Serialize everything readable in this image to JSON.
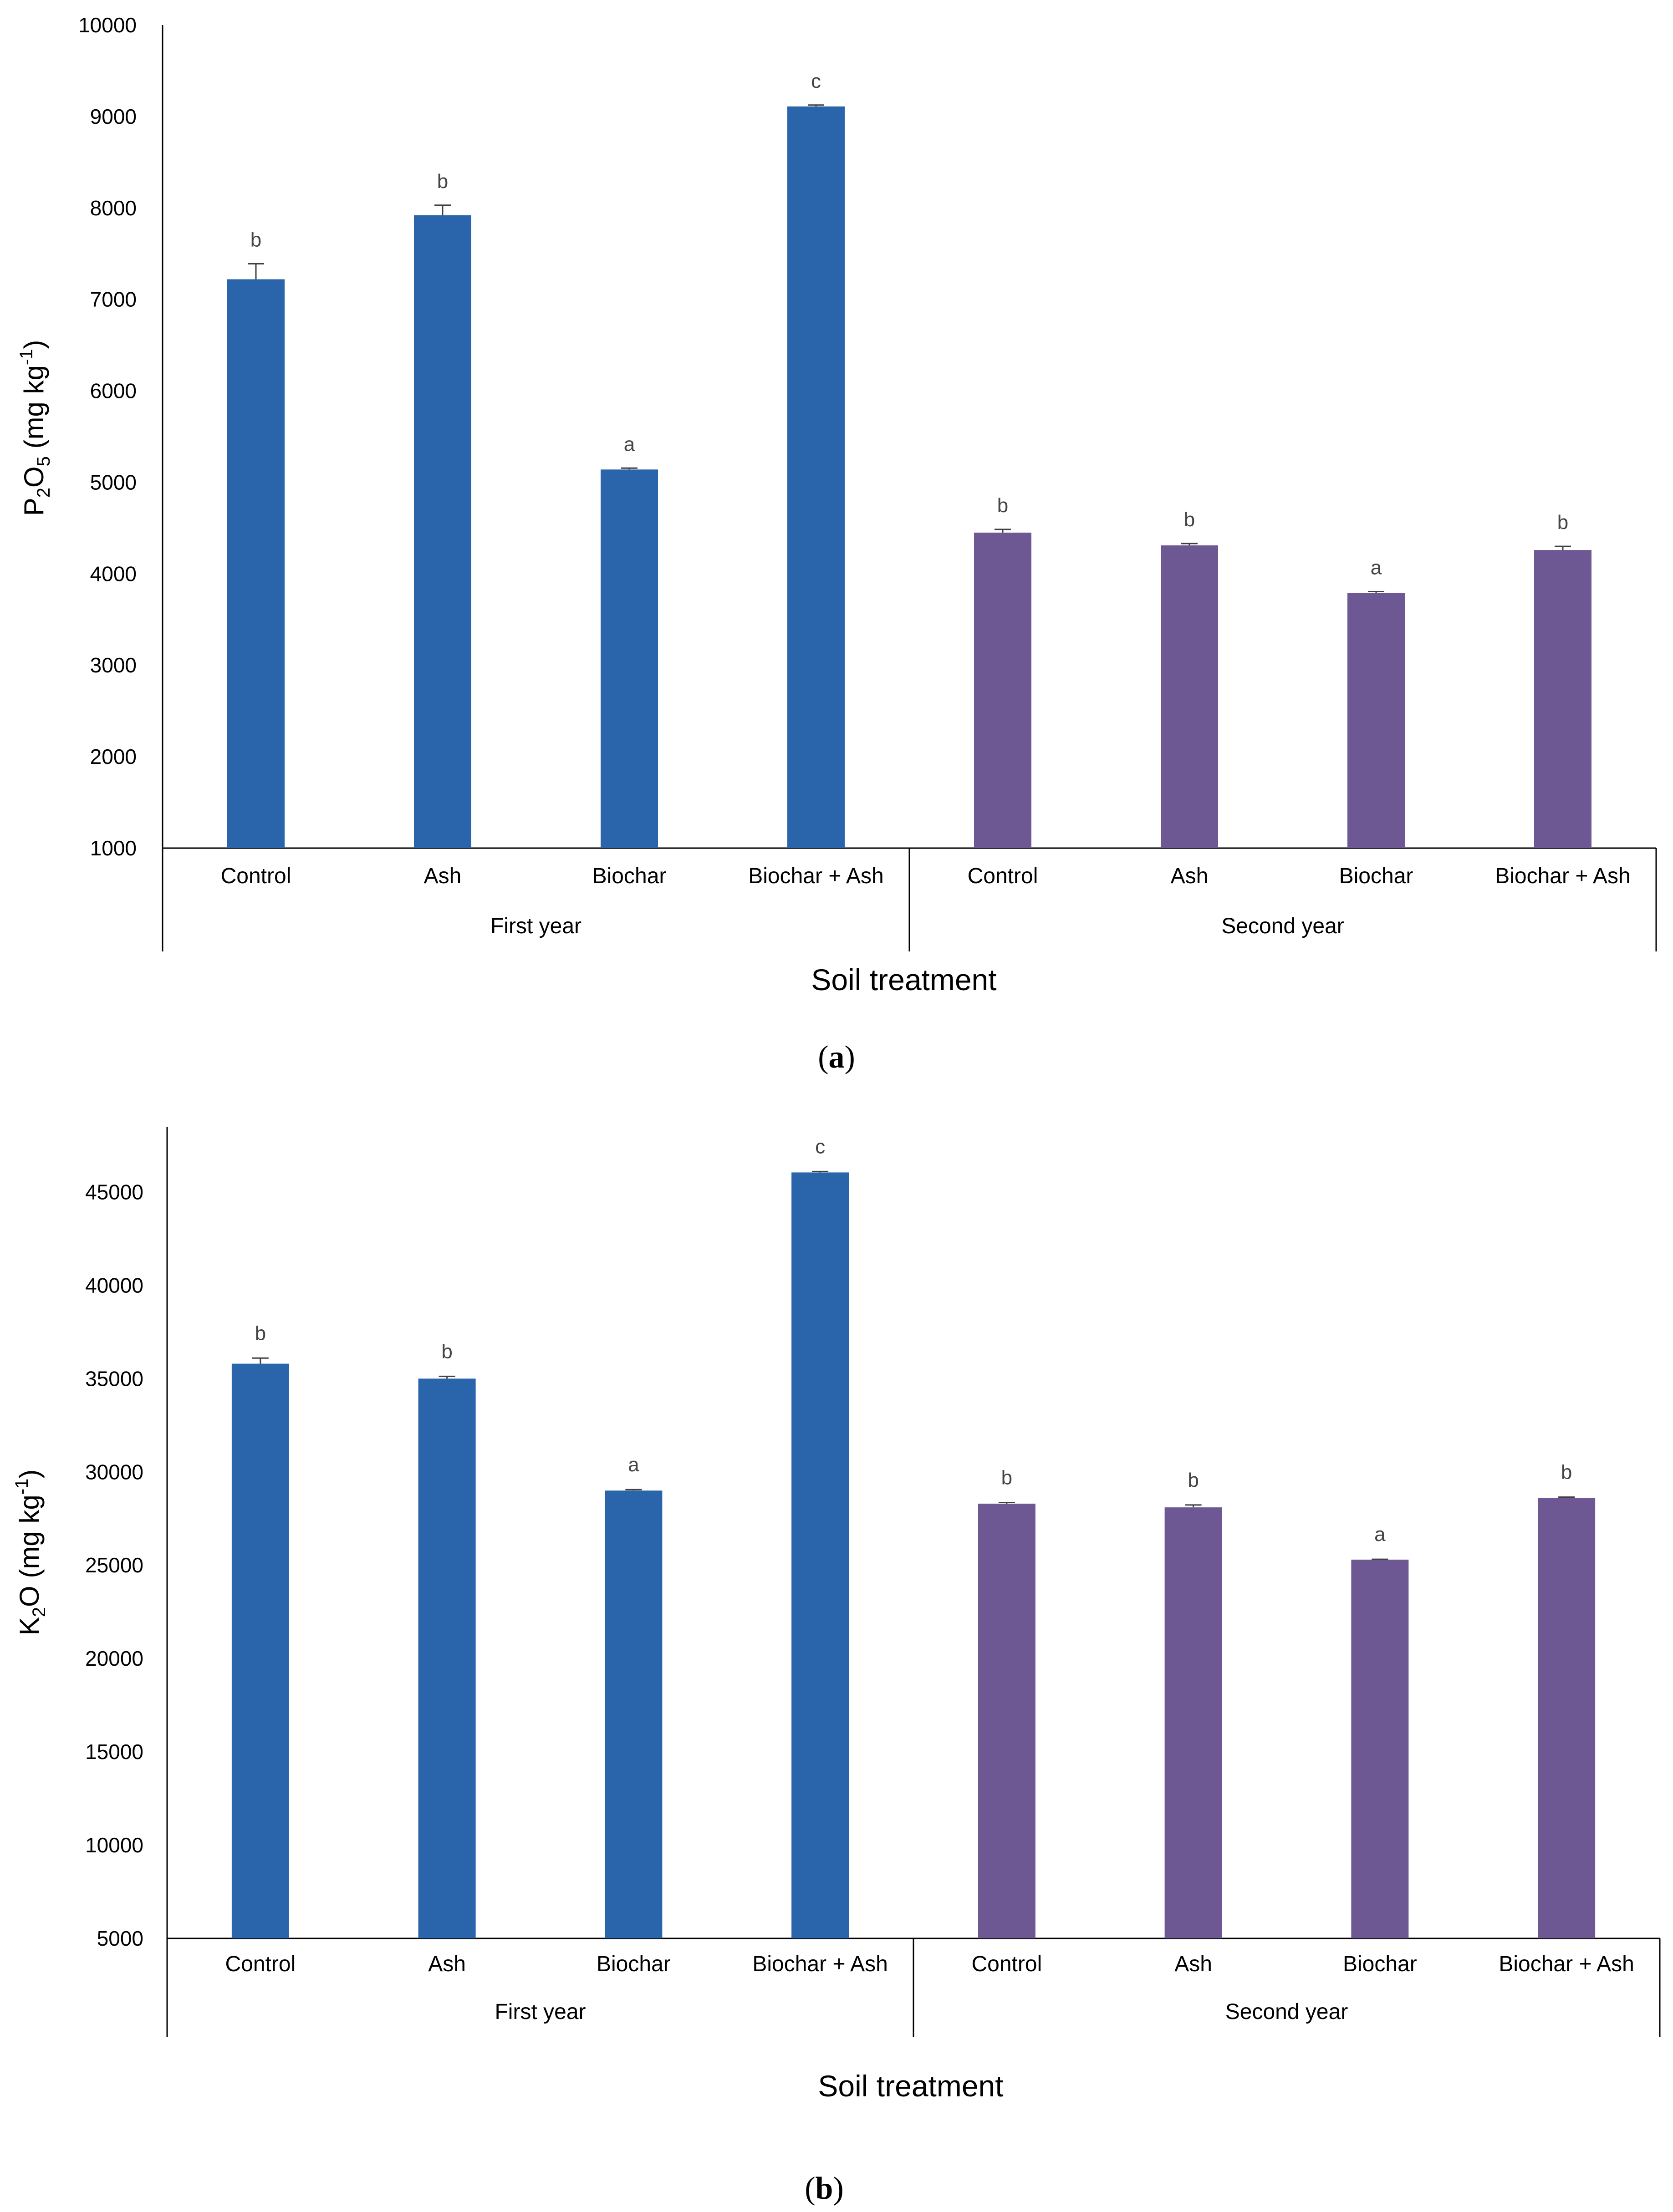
{
  "colors": {
    "first_year": "#2a64ab",
    "second_year": "#6d5893",
    "axis": "#000000",
    "error": "#404040"
  },
  "chart_data": [
    {
      "type": "bar",
      "panel_label": "a",
      "ylabel": {
        "prefix": "P",
        "sub1": "2",
        "mid": "O",
        "sub2": "5",
        "unit_open": " (mg kg",
        "sup": "-1",
        "unit_close": ")"
      },
      "xlabel": "Soil treatment",
      "ylim": [
        1000,
        10000
      ],
      "yticks": [
        1000,
        2000,
        3000,
        4000,
        5000,
        6000,
        7000,
        8000,
        9000,
        10000
      ],
      "groups": [
        {
          "name": "First year",
          "color": "#2a64ab",
          "categories": [
            "Control",
            "Ash",
            "Biochar",
            "Biochar + Ash"
          ],
          "values": [
            7220,
            7920,
            5140,
            9110
          ],
          "errors": [
            170,
            110,
            15,
            15
          ],
          "letters": [
            "b",
            "b",
            "a",
            "c"
          ]
        },
        {
          "name": "Second year",
          "color": "#6d5893",
          "categories": [
            "Control",
            "Ash",
            "Biochar",
            "Biochar + Ash"
          ],
          "values": [
            4450,
            4310,
            3790,
            4260
          ],
          "errors": [
            35,
            20,
            15,
            40
          ],
          "letters": [
            "b",
            "b",
            "a",
            "b"
          ]
        }
      ]
    },
    {
      "type": "bar",
      "panel_label": "b",
      "ylabel": {
        "prefix": "K",
        "sub1": "2",
        "mid": "O",
        "sub2": "",
        "unit_open": " (mg kg",
        "sup": "-1",
        "unit_close": ")"
      },
      "xlabel": "Soil treatment",
      "ylim": [
        5000,
        48500
      ],
      "yticks": [
        5000,
        10000,
        15000,
        20000,
        25000,
        30000,
        35000,
        40000,
        45000
      ],
      "groups": [
        {
          "name": "First year",
          "color": "#2a64ab",
          "categories": [
            "Control",
            "Ash",
            "Biochar",
            "Biochar + Ash"
          ],
          "values": [
            35800,
            35000,
            29000,
            46050
          ],
          "errors": [
            300,
            120,
            50,
            50
          ],
          "letters": [
            "b",
            "b",
            "a",
            "c"
          ]
        },
        {
          "name": "Second year",
          "color": "#6d5893",
          "categories": [
            "Control",
            "Ash",
            "Biochar",
            "Biochar + Ash"
          ],
          "values": [
            28300,
            28100,
            25300,
            28600
          ],
          "errors": [
            60,
            130,
            20,
            50
          ],
          "letters": [
            "b",
            "b",
            "a",
            "b"
          ]
        }
      ]
    }
  ]
}
